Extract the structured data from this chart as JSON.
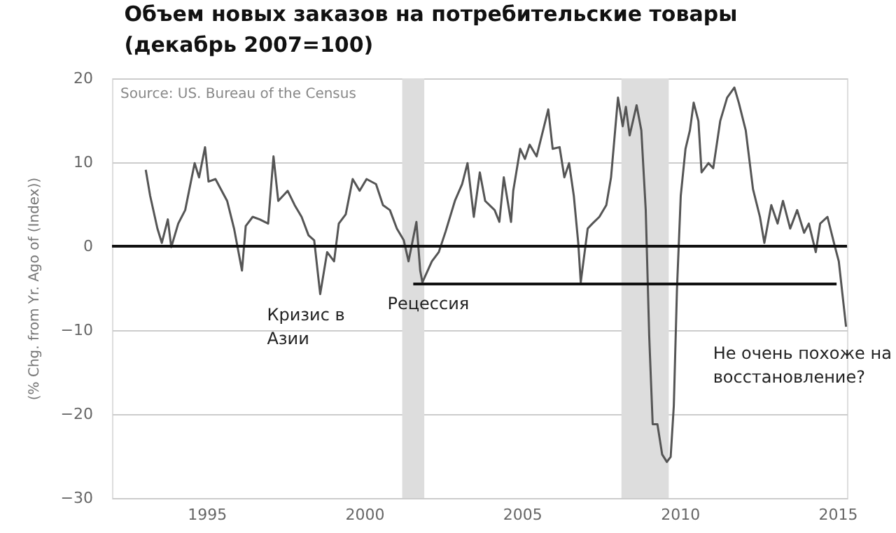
{
  "chart_data": {
    "type": "line",
    "title": "Объем новых заказов на потребительские товары\n(декабрь 2007=100)",
    "ylabel": "(% Chg. from Yr. Ago of (Index))",
    "annotations": [
      "Source: US. Bureau of the Census",
      {
        "text": "Кризис в Азии",
        "x": 1998.6,
        "y": -5.7
      },
      {
        "text": "Рецессия",
        "x": 2001.84,
        "y": -4.3
      },
      {
        "text": "Не очень похоже на восстановление?",
        "x": 2015.27,
        "y": -9.6
      }
    ],
    "xlim": [
      1992,
      2015.3
    ],
    "xticks": [
      1995,
      2000,
      2005,
      2010,
      2015
    ],
    "ylim": [
      -30,
      20
    ],
    "yticks": [
      -30,
      -20,
      -10,
      0,
      10,
      20
    ],
    "grid": "y",
    "ref_lines": [
      {
        "axis": "y",
        "value": 0,
        "color": "#111111"
      }
    ],
    "bands": [
      {
        "axis": "x",
        "from": 2001.2,
        "to": 2001.9,
        "color": "#dddddd"
      },
      {
        "axis": "x",
        "from": 2008.15,
        "to": 2009.65,
        "color": "#dddddd"
      }
    ],
    "series": [
      {
        "color": "#555555",
        "x": [
          1993.07,
          1993.21,
          1993.44,
          1993.58,
          1993.77,
          1993.88,
          1994.1,
          1994.32,
          1994.62,
          1994.76,
          1994.95,
          1995.06,
          1995.28,
          1995.65,
          1995.87,
          1996.12,
          1996.24,
          1996.46,
          1996.68,
          1996.95,
          1997.12,
          1997.27,
          1997.57,
          1997.79,
          1998.01,
          1998.23,
          1998.41,
          1998.6,
          1998.82,
          1999.04,
          1999.19,
          1999.41,
          1999.63,
          1999.85,
          2000.07,
          2000.37,
          2000.59,
          2000.81,
          2001.03,
          2001.25,
          2001.4,
          2001.65,
          2001.77,
          2001.84,
          2002.14,
          2002.36,
          2002.58,
          2002.87,
          2003.1,
          2003.27,
          2003.47,
          2003.66,
          2003.83,
          2004.13,
          2004.28,
          2004.42,
          2004.65,
          2004.72,
          2004.94,
          2005.09,
          2005.24,
          2005.46,
          2005.83,
          2005.97,
          2006.19,
          2006.34,
          2006.49,
          2006.64,
          2006.78,
          2006.86,
          2007.08,
          2007.23,
          2007.45,
          2007.67,
          2007.82,
          2008.04,
          2008.19,
          2008.29,
          2008.41,
          2008.63,
          2008.78,
          2008.92,
          2009.03,
          2009.14,
          2009.29,
          2009.44,
          2009.59,
          2009.71,
          2009.81,
          2009.91,
          2010.03,
          2010.18,
          2010.32,
          2010.44,
          2010.59,
          2010.69,
          2010.91,
          2011.06,
          2011.28,
          2011.5,
          2011.73,
          2011.87,
          2012.09,
          2012.32,
          2012.54,
          2012.68,
          2012.9,
          2013.1,
          2013.27,
          2013.5,
          2013.72,
          2013.94,
          2014.09,
          2014.31,
          2014.45,
          2014.68,
          2014.9,
          2015.04,
          2015.27
        ],
        "values": [
          9.1,
          6.0,
          2.1,
          0.4,
          3.2,
          -0.1,
          2.7,
          4.3,
          9.9,
          8.2,
          11.8,
          7.7,
          8.0,
          5.4,
          2.1,
          -2.9,
          2.4,
          3.5,
          3.2,
          2.7,
          10.7,
          5.4,
          6.6,
          4.9,
          3.5,
          1.3,
          0.7,
          -5.7,
          -0.7,
          -1.8,
          2.7,
          3.8,
          8.0,
          6.6,
          8.0,
          7.4,
          4.9,
          4.3,
          2.1,
          0.7,
          -1.8,
          2.9,
          -2.9,
          -4.3,
          -1.8,
          -0.7,
          1.8,
          5.4,
          7.4,
          9.9,
          3.5,
          8.8,
          5.4,
          4.3,
          2.9,
          8.2,
          2.9,
          6.6,
          11.6,
          10.4,
          12.1,
          10.7,
          16.3,
          11.6,
          11.8,
          8.2,
          9.9,
          6.0,
          0.4,
          -4.3,
          2.1,
          2.7,
          3.5,
          4.9,
          8.2,
          17.7,
          14.3,
          16.6,
          13.2,
          16.8,
          13.8,
          4.3,
          -10.7,
          -21.2,
          -21.2,
          -24.8,
          -25.7,
          -25.1,
          -19.0,
          -5.1,
          6.0,
          11.6,
          13.8,
          17.1,
          14.9,
          8.8,
          9.9,
          9.3,
          14.9,
          17.7,
          18.9,
          17.1,
          13.8,
          6.8,
          3.5,
          0.4,
          4.9,
          2.7,
          5.4,
          2.1,
          4.3,
          1.6,
          2.7,
          -0.7,
          2.7,
          3.5,
          0.2,
          -1.8,
          -9.6
        ]
      },
      {
        "color": "#111111",
        "x": [
          2001.55,
          2014.97
        ],
        "values": [
          -4.5,
          -4.5
        ]
      }
    ]
  }
}
